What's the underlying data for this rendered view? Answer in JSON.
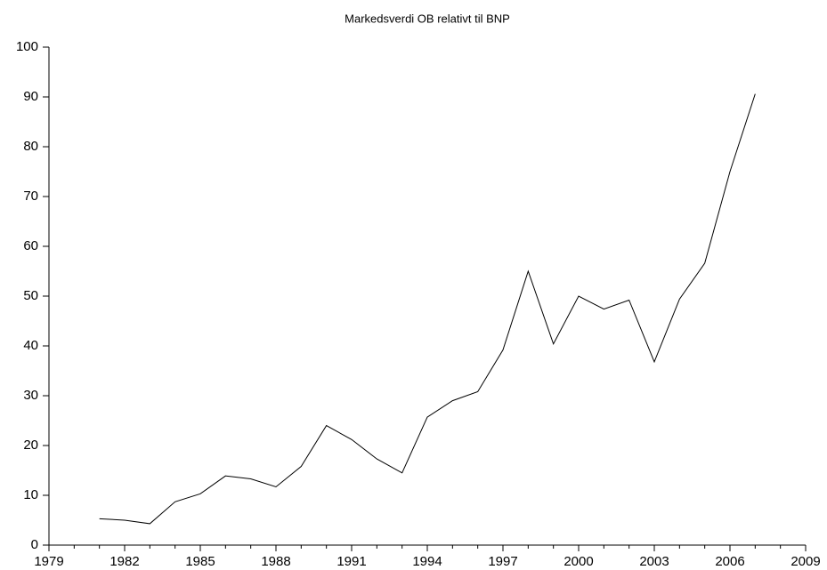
{
  "chart_data": {
    "type": "line",
    "title": "Markedsverdi OB relativt til BNP",
    "x": [
      1981,
      1982,
      1983,
      1984,
      1985,
      1986,
      1987,
      1988,
      1989,
      1990,
      1991,
      1992,
      1993,
      1994,
      1995,
      1996,
      1997,
      1998,
      1999,
      2000,
      2001,
      2002,
      2003,
      2004,
      2005,
      2006,
      2007
    ],
    "values": [
      5.3,
      5.0,
      4.3,
      8.7,
      10.3,
      13.9,
      13.3,
      11.7,
      15.8,
      24.0,
      21.2,
      17.3,
      14.5,
      25.7,
      29.0,
      30.8,
      39.2,
      55.0,
      40.4,
      50.0,
      47.4,
      49.2,
      36.8,
      49.4,
      56.6,
      75.0,
      90.6
    ],
    "color": "#000000",
    "xlim": [
      1979,
      2009
    ],
    "xticks": [
      1979,
      1982,
      1985,
      1988,
      1991,
      1994,
      1997,
      2000,
      2003,
      2006,
      2009
    ],
    "xminorticks": [
      1980,
      1981,
      1983,
      1984,
      1986,
      1987,
      1989,
      1990,
      1992,
      1993,
      1995,
      1996,
      1998,
      1999,
      2001,
      2002,
      2004,
      2005,
      2007,
      2008
    ],
    "ylim": [
      0,
      100
    ],
    "yticks": [
      0,
      10,
      20,
      30,
      40,
      50,
      60,
      70,
      80,
      90,
      100
    ],
    "grid": false
  }
}
